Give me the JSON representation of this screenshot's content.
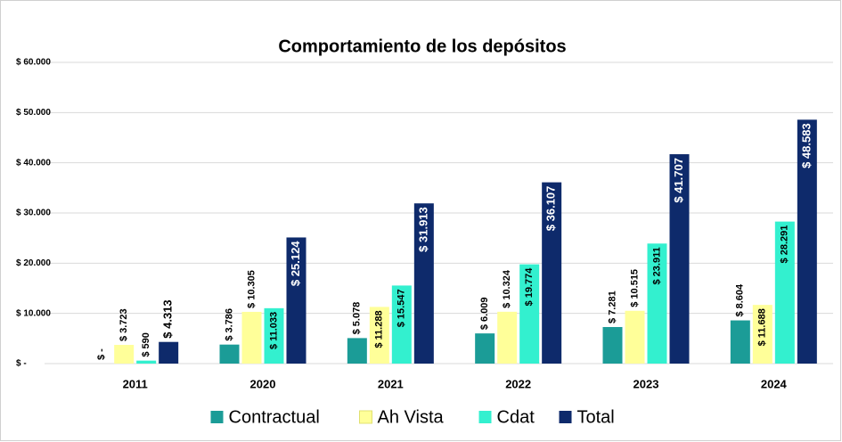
{
  "chart_data": {
    "type": "bar",
    "title": "Comportamiento de los depósitos",
    "categories": [
      "2011",
      "2020",
      "2021",
      "2022",
      "2023",
      "2024"
    ],
    "series": [
      {
        "name": "Contractual",
        "color": "#1b9c97",
        "values": [
          0,
          3786,
          5078,
          6009,
          7281,
          8604
        ],
        "value_labels": [
          "$ -",
          "$ 3.786",
          "$ 5.078",
          "$ 6.009",
          "$ 7.281",
          "$ 8.604"
        ]
      },
      {
        "name": "Ah Vista",
        "color": "#ffff99",
        "values": [
          3723,
          10305,
          11288,
          10324,
          10515,
          11688
        ],
        "value_labels": [
          "$ 3.723",
          "$ 10.305",
          "$ 11.288",
          "$ 10.324",
          "$ 10.515",
          "$ 11.688"
        ]
      },
      {
        "name": "Cdat",
        "color": "#33f0cf",
        "values": [
          590,
          11033,
          15547,
          19774,
          23911,
          28291
        ],
        "value_labels": [
          "$ 590",
          "$ 11.033",
          "$ 15.547",
          "$ 19.774",
          "$ 23.911",
          "$ 28.291"
        ]
      },
      {
        "name": "Total",
        "color": "#0e2a6b",
        "values": [
          4313,
          25124,
          31913,
          36107,
          41707,
          48583
        ],
        "value_labels": [
          "$ 4.313",
          "$ 25.124",
          "$ 31.913",
          "$ 36.107",
          "$ 41.707",
          "$ 48.583"
        ]
      }
    ],
    "ylim": [
      0,
      60000
    ],
    "yticks": [
      {
        "value": 0,
        "label": "$ -"
      },
      {
        "value": 10000,
        "label": "$ 10.000"
      },
      {
        "value": 20000,
        "label": "$ 20.000"
      },
      {
        "value": 30000,
        "label": "$ 30.000"
      },
      {
        "value": 40000,
        "label": "$ 40.000"
      },
      {
        "value": 50000,
        "label": "$ 50.000"
      },
      {
        "value": 60000,
        "label": "$ 60.000"
      }
    ],
    "grid": true,
    "legend": "bottom"
  }
}
